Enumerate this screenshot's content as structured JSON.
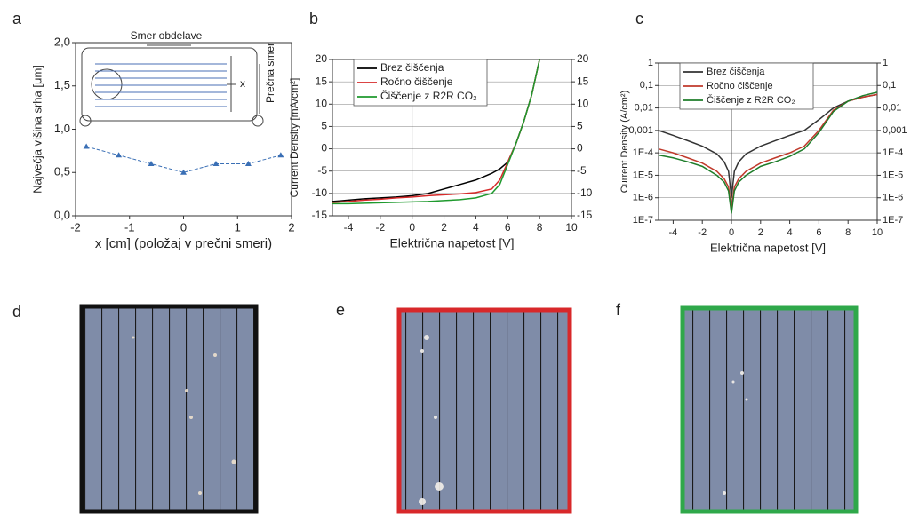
{
  "chart_data": [
    {
      "type": "line",
      "panel": "a",
      "x_label": "x [cm] (položaj v prečni smeri)",
      "y_label": "Največja višina srha [μm]",
      "annotations": [
        "Smer obdelave",
        "x",
        "Prečna smer"
      ],
      "x": [
        -1.8,
        -1.2,
        -0.6,
        0,
        0.6,
        1.2,
        1.8
      ],
      "values": [
        0.8,
        0.7,
        0.6,
        0.5,
        0.6,
        0.6,
        0.7
      ],
      "color": "#3a6fb5",
      "marker": "triangle",
      "line_style": "dashed",
      "xlim": [
        -2,
        2
      ],
      "xticks": [
        -2,
        -1,
        0,
        1,
        2
      ],
      "ylim": [
        0,
        2
      ],
      "yticks": [
        {
          "value": 0,
          "label": "0,0"
        },
        {
          "value": 0.5,
          "label": "0,5"
        },
        {
          "value": 1,
          "label": "1,0"
        },
        {
          "value": 1.5,
          "label": "1,5"
        },
        {
          "value": 2,
          "label": "2,0"
        }
      ],
      "grid": false
    },
    {
      "type": "line",
      "panel": "b",
      "x_label": "Električna napetost [V]",
      "y_label": "Current Density [mA/cm²]",
      "x": [
        -5,
        -4,
        -3,
        -2,
        -1,
        0,
        1,
        2,
        3,
        4,
        5,
        5.5,
        6,
        6.5,
        7,
        7.5,
        8
      ],
      "series": [
        {
          "name": "Brez čiščenja",
          "color": "#000000",
          "values": [
            -11.8,
            -11.5,
            -11.2,
            -11,
            -10.8,
            -10.5,
            -10,
            -9,
            -8,
            -7,
            -5.5,
            -4.5,
            -3,
            1,
            6,
            12,
            20
          ]
        },
        {
          "name": "Ročno čiščenje",
          "color": "#d62a2a",
          "values": [
            -12,
            -11.8,
            -11.5,
            -11.3,
            -11,
            -10.8,
            -10.5,
            -10.3,
            -10.1,
            -9.8,
            -9,
            -7,
            -3,
            1,
            6,
            12,
            20
          ]
        },
        {
          "name": "Čiščenje z R2R CO₂",
          "color": "#1f9a2e",
          "values": [
            -12.3,
            -12.3,
            -12.2,
            -12.1,
            -12,
            -11.9,
            -11.8,
            -11.6,
            -11.4,
            -11,
            -10,
            -8,
            -3.5,
            1,
            6,
            12,
            20
          ]
        }
      ],
      "xlim": [
        -5,
        10
      ],
      "xticks": [
        -4,
        -2,
        0,
        2,
        4,
        6,
        8,
        10
      ],
      "ylim": [
        -15,
        20
      ],
      "yticks": [
        -15,
        -10,
        -5,
        0,
        5,
        10,
        15,
        20
      ],
      "y2lim": [
        -15,
        20
      ],
      "y2ticks": [
        -15,
        -10,
        -5,
        0,
        5,
        10,
        15,
        20
      ],
      "grid": true,
      "zero_line": true,
      "legend": "upper left"
    },
    {
      "type": "line",
      "panel": "c",
      "x_label": "Električna napetost [V]",
      "y_label": "Current Density (A/cm²)",
      "x": [
        -5,
        -4,
        -3,
        -2,
        -1,
        -0.5,
        -0.2,
        0,
        0.2,
        0.5,
        1,
        2,
        3,
        4,
        5,
        6,
        7,
        8,
        9,
        10
      ],
      "series": [
        {
          "name": "Brez čiščenja",
          "color": "#333333",
          "values": [
            0.001,
            0.0006,
            0.00035,
            0.0002,
            9e-05,
            4e-05,
            1.5e-05,
            1e-06,
            1.5e-05,
            4e-05,
            9e-05,
            0.0002,
            0.00035,
            0.0006,
            0.001,
            0.003,
            0.01,
            0.02,
            0.03,
            0.04
          ]
        },
        {
          "name": "Ročno čiščenje",
          "color": "#c0392b",
          "values": [
            0.00015,
            0.0001,
            6e-05,
            3.5e-05,
            1.5e-05,
            7e-06,
            3e-06,
            3e-07,
            3e-06,
            7e-06,
            1.5e-05,
            3.5e-05,
            6e-05,
            0.0001,
            0.0002,
            0.001,
            0.008,
            0.02,
            0.03,
            0.04
          ]
        },
        {
          "name": "Čiščenje z R2R CO₂",
          "color": "#1e7d2a",
          "values": [
            8e-05,
            6e-05,
            4e-05,
            2.5e-05,
            1e-05,
            5e-06,
            2e-06,
            2e-07,
            2e-06,
            5e-06,
            1e-05,
            2.5e-05,
            4e-05,
            7e-05,
            0.00015,
            0.0008,
            0.007,
            0.02,
            0.035,
            0.05
          ]
        }
      ],
      "xlim": [
        -5,
        10
      ],
      "xticks": [
        -4,
        -2,
        0,
        2,
        4,
        6,
        8,
        10
      ],
      "ylim": [
        1e-07,
        1
      ],
      "ylog": true,
      "yticks": [
        {
          "value": 1e-07,
          "label": "1E-7"
        },
        {
          "value": 1e-06,
          "label": "1E-6"
        },
        {
          "value": 1e-05,
          "label": "1E-5"
        },
        {
          "value": 0.0001,
          "label": "1E-4"
        },
        {
          "value": 0.001,
          "label": "0,001"
        },
        {
          "value": 0.01,
          "label": "0,01"
        },
        {
          "value": 0.1,
          "label": "0,1"
        },
        1
      ],
      "y2lim": [
        1e-07,
        1
      ],
      "y2ticks": [
        {
          "value": 1e-07,
          "label": "1E-7"
        },
        {
          "value": 1e-06,
          "label": "1E-6"
        },
        {
          "value": 1e-05,
          "label": "1E-5"
        },
        {
          "value": 0.0001,
          "label": "1E-4"
        },
        {
          "value": 0.001,
          "label": "0,001"
        },
        {
          "value": 0.01,
          "label": "0,01"
        },
        {
          "value": 0.1,
          "label": "0,1"
        },
        1
      ],
      "grid": true,
      "zero_line": true,
      "legend": "upper left"
    }
  ],
  "images": [
    {
      "panel": "d"
    },
    {
      "panel": "e"
    },
    {
      "panel": "f"
    }
  ]
}
